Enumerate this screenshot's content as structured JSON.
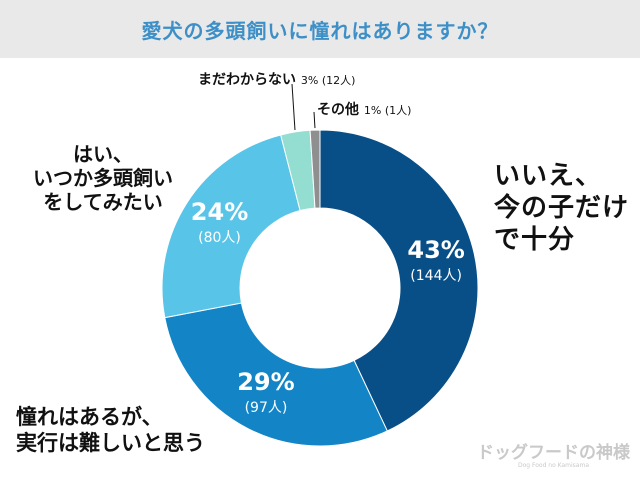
{
  "title": "愛犬の多頭飼いに憧れはありますか？",
  "chart_data": {
    "type": "pie",
    "title": "愛犬の多頭飼いに憧れはありますか？",
    "donut": true,
    "slices": [
      {
        "name": "いいえ、今の子だけで十分",
        "percent": 43,
        "count_label": "(144人)",
        "color": "#094f87"
      },
      {
        "name": "憧れはあるが、実行は難しいと思う",
        "percent": 29,
        "count_label": "(97人)",
        "color": "#1385c6"
      },
      {
        "name": "はい、いつか多頭飼いをしてみたい",
        "percent": 24,
        "count_label": "(80人)",
        "color": "#58c4e8"
      },
      {
        "name": "まだわからない",
        "percent": 3,
        "count_label": "(12人)",
        "color": "#93ded0"
      },
      {
        "name": "その他",
        "percent": 1,
        "count_label": "(1人)",
        "color": "#8f8f8f"
      }
    ],
    "inside_labels": [
      {
        "pct": "43%",
        "count": "(144人)"
      },
      {
        "pct": "29%",
        "count": "(97人)"
      },
      {
        "pct": "24%",
        "count": "(80人)"
      }
    ]
  },
  "labels": {
    "no": [
      "いいえ、",
      "今の子だけ",
      "で十分"
    ],
    "hard": [
      "憧れはあるが、",
      "実行は難しいと思う"
    ],
    "yes": [
      "はい、",
      "いつか多頭飼い",
      "をしてみたい"
    ],
    "unknown": {
      "name": "まだわからない",
      "pct": "3% (12人)"
    },
    "other": {
      "name": "その他",
      "pct": "1% (1人)"
    }
  },
  "watermark": {
    "main": "ドッグフードの神様",
    "sub": "Dog Food no Kamisama"
  }
}
